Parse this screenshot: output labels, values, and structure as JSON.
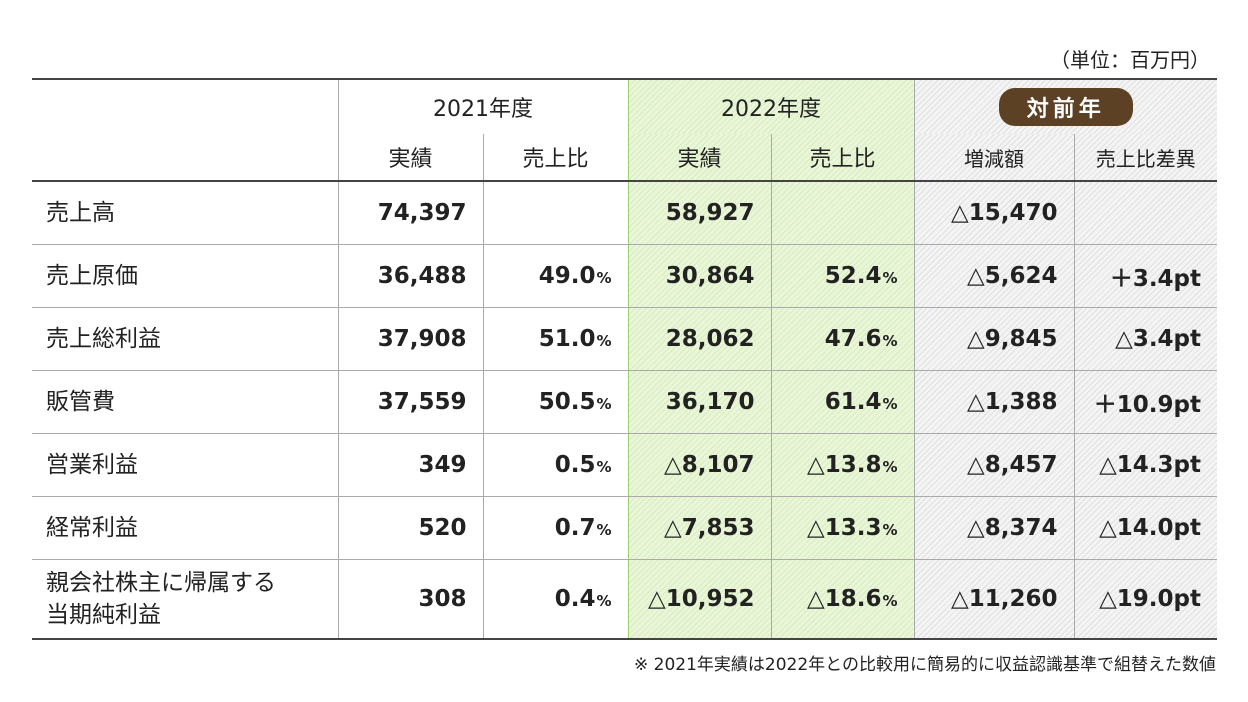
{
  "unit": "（単位：百万円）",
  "header": {
    "year2021": "2021年度",
    "year2022": "2022年度",
    "yoy": "対前年",
    "actual": "実績",
    "ratio": "売上比",
    "diff": "増減額",
    "ratio_diff": "売上比差異"
  },
  "rows": [
    {
      "label": "売上高",
      "a21": "74,397",
      "r21": "",
      "a22": "58,927",
      "r22": "",
      "diff": "△15,470",
      "rdiff": ""
    },
    {
      "label": "売上原価",
      "a21": "36,488",
      "r21": "49.0",
      "a22": "30,864",
      "r22": "52.4",
      "diff": "△5,624",
      "rdiff": "＋3.4pt"
    },
    {
      "label": "売上総利益",
      "a21": "37,908",
      "r21": "51.0",
      "a22": "28,062",
      "r22": "47.6",
      "diff": "△9,845",
      "rdiff": "△3.4pt"
    },
    {
      "label": "販管費",
      "a21": "37,559",
      "r21": "50.5",
      "a22": "36,170",
      "r22": "61.4",
      "diff": "△1,388",
      "rdiff": "＋10.9pt"
    },
    {
      "label": "営業利益",
      "a21": "349",
      "r21": "0.5",
      "a22": "△8,107",
      "r22": "△13.8",
      "diff": "△8,457",
      "rdiff": "△14.3pt"
    },
    {
      "label": "経常利益",
      "a21": "520",
      "r21": "0.7",
      "a22": "△7,853",
      "r22": "△13.3",
      "diff": "△8,374",
      "rdiff": "△14.0pt"
    },
    {
      "label_line1": "親会社株主に帰属する",
      "label_line2": "当期純利益",
      "a21": "308",
      "r21": "0.4",
      "a22": "△10,952",
      "r22": "△18.6",
      "diff": "△11,260",
      "rdiff": "△19.0pt"
    }
  ],
  "pct_sign": "%",
  "note": "※ 2021年実績は2022年との比較用に簡易的に収益認識基準で組替えた数値"
}
